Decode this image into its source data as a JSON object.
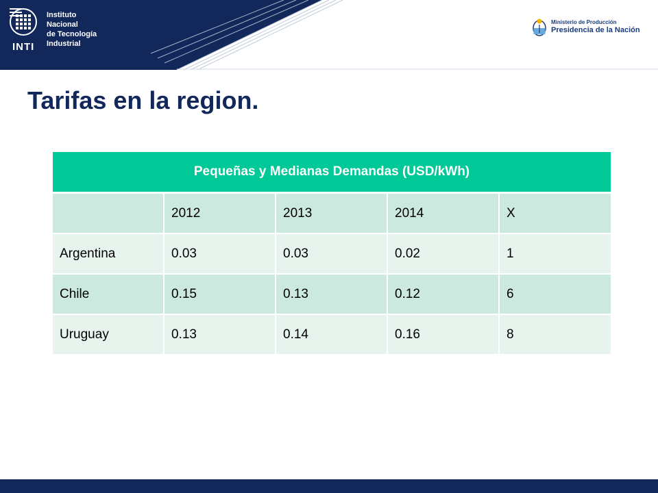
{
  "header": {
    "logo_word": "INTI",
    "institute_lines": [
      "Instituto",
      "Nacional",
      "de Tecnología",
      "Industrial"
    ],
    "ministry_line1": "Ministerio de Producción",
    "ministry_line2": "Presidencia de la Nación",
    "colors": {
      "band": "#13285a",
      "accent": "#00c896"
    }
  },
  "title": "Tarifas en la region.",
  "table": {
    "caption": "Pequeñas y Medianas Demandas (USD/kWh)",
    "columns": [
      "",
      "2012",
      "2013",
      "2014",
      "X"
    ],
    "rows": [
      [
        "Argentina",
        "0.03",
        "0.03",
        "0.02",
        "1"
      ],
      [
        "Chile",
        "0.15",
        "0.13",
        "0.12",
        "6"
      ],
      [
        "Uruguay",
        "0.13",
        "0.14",
        "0.16",
        "8"
      ]
    ]
  }
}
